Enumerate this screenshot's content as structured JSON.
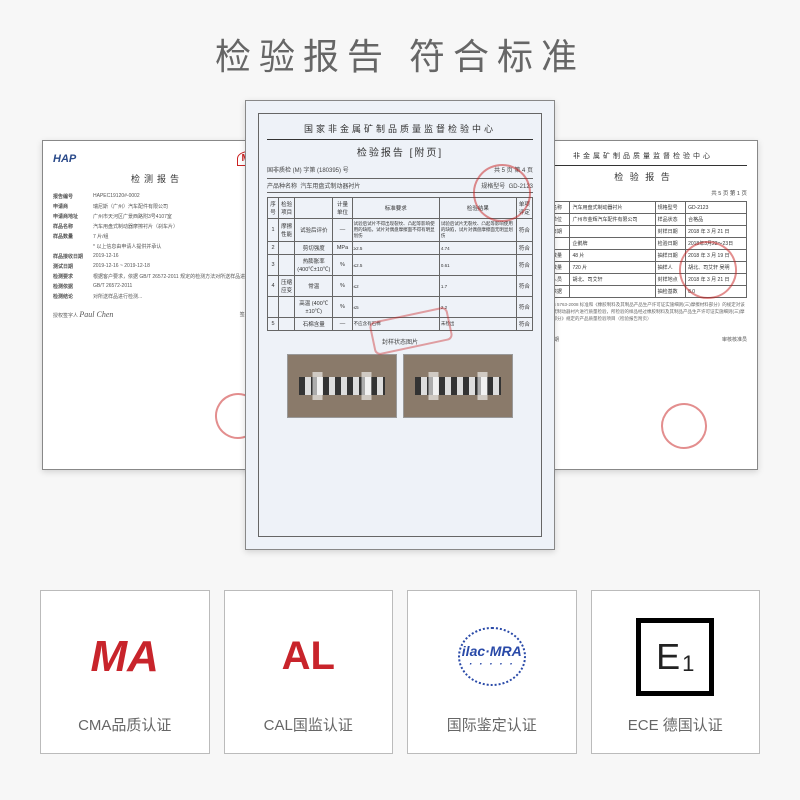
{
  "title": "检验报告  符合标准",
  "center": {
    "org": "国家非金属矿制品质量监督检验中心",
    "report_title": "检验报告 [附页]",
    "ref_left": "国非质检 (M) 字第 (180395) 号",
    "ref_right": "共 5 页 第 4 页",
    "product_label": "产品种名称",
    "product_value": "汽车用盘式制动器衬片",
    "model_label": "规格型号",
    "model_value": "GD-2123",
    "headers": [
      "序号",
      "检验项目",
      "",
      "计量单位",
      "标准要求",
      "检验结果",
      "单项评定"
    ],
    "rows": [
      {
        "n": "1",
        "g": "摩擦性能",
        "item": "试验后评价",
        "unit": "—",
        "req": "试验后试片不得出现裂纹、凸起等影响使用的缺陷，试片对偶盘摩擦面不得有明显划伤",
        "res": "试验后试片无裂纹、凸起等影响使用的缺陷，试片对偶盘摩擦面无明显划伤",
        "j": "符合"
      },
      {
        "n": "2",
        "g": "",
        "item": "剪切强度",
        "unit": "MPa",
        "req": "≥2.5",
        "res": "4.74",
        "j": "符合"
      },
      {
        "n": "3",
        "g": "",
        "item": "热膨胀率 (400℃±10℃)",
        "unit": "%",
        "req": "≤2.5",
        "res": "0.61",
        "j": "符合"
      },
      {
        "n": "4",
        "g": "压缩应变",
        "item": "常温",
        "unit": "%",
        "req": "≤2",
        "res": "1.7",
        "j": "符合"
      },
      {
        "n": "",
        "g": "",
        "item": "高温 (400℃±10℃)",
        "unit": "%",
        "req": "≤5",
        "res": "2.2",
        "j": "符合"
      },
      {
        "n": "5",
        "g": "",
        "item": "石棉含量",
        "unit": "—",
        "req": "不应含有石棉",
        "res": "未检出",
        "j": "符合"
      }
    ],
    "photo_label": "封样状态图片"
  },
  "left": {
    "hap": "HAP",
    "title": "检测报告",
    "ref": "HAPEC19120#-0002",
    "fields": [
      {
        "l": "申请商",
        "v": "瑞尼斯（广州）汽车配件有限公司"
      },
      {
        "l": "申请商地址",
        "v": "广州市天河区广景西路附3号4107室"
      },
      {
        "l": "样品名称",
        "v": "汽车用盘式制动器摩擦衬片（刹车片）"
      },
      {
        "l": "样品数量",
        "v": "7 片/组"
      },
      {
        "l": "",
        "v": "* 以上信息由申请人提供并承认"
      },
      {
        "l": "样品接收日期",
        "v": "2019-12-16"
      },
      {
        "l": "测试日期",
        "v": "2019-12-16 ~ 2019-12-18"
      },
      {
        "l": "检测要求",
        "v": "根据客户要求，依据 GB/T 26572-2011 规定的检测方法对所送样品进行..."
      },
      {
        "l": "检测依据",
        "v": "GB/T 26572-2011"
      },
      {
        "l": "检测结论",
        "v": "对所送样品进行检测..."
      }
    ],
    "sig_l_label": "授权签字人",
    "sig_l": "Paul Chen",
    "sig_r_label": "签发日期:"
  },
  "right": {
    "org": "非金属矿制品质量监督检验中心",
    "title": "检 验 报 告",
    "ref_right": "共 5 页 第 1 页",
    "rows": [
      [
        "产品名称",
        "汽车用盘式制动器衬片",
        "规格型号",
        "GD-2123"
      ],
      [
        "生产单位",
        "广州市金辉汽车配件有限公司",
        "样品状态",
        "合格品"
      ],
      [
        "生产日期",
        "",
        "封样日期",
        "2018 年 3 月 21 日"
      ],
      [
        "商标",
        "企鹅牌",
        "检验日期",
        "2018年3月22～23日"
      ],
      [
        "样品数量",
        "48 片",
        "抽样日期",
        "2018 年 3 月 19 日"
      ],
      [
        "抽检数量",
        "720 片",
        "抽样人",
        "胡北、司艾轩 吴明"
      ],
      [
        "封样人员",
        "胡北、司艾轩",
        "封样地点",
        "2018 年 3 月 21 日"
      ],
      [
        "检验依据",
        "",
        "抽检基数",
        "8.0"
      ]
    ],
    "note": "根据 GB 5763-2008 标准和《橡胶制料及其制品产品生产许可证实施细则(三)摩擦材料部分》的规定对该型号盘式制动器衬片进行质量检验，所检验的样品经过橡胶制料及其制品产品生产许可证实施细则(三)摩擦材料部分》规定的产品质量检验项目（检验报告附页）",
    "footer_l": "签发日期",
    "footer_r": "审核核准员"
  },
  "badges": [
    {
      "label": "CMA品质认证",
      "kind": "cma",
      "text": "MA"
    },
    {
      "label": "CAL国监认证",
      "kind": "cal",
      "text": "AL"
    },
    {
      "label": "国际鉴定认证",
      "kind": "ilac",
      "text": "ilac·MRA",
      "sub": "· · · · ·"
    },
    {
      "label": "ECE 德国认证",
      "kind": "ece",
      "text": "E",
      "sub": "1"
    }
  ]
}
